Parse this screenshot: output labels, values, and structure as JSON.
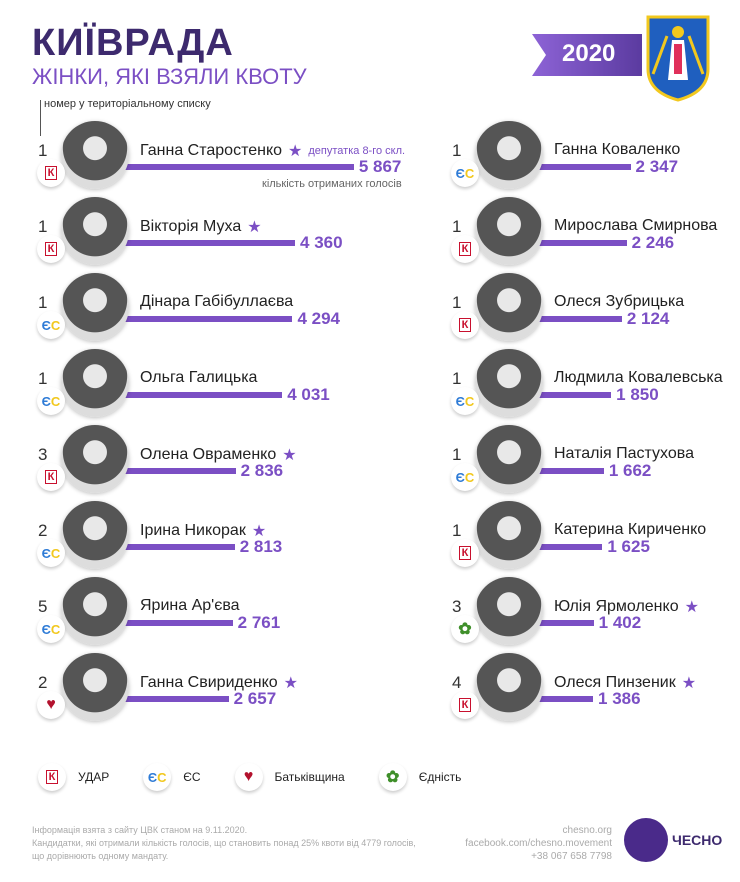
{
  "header": {
    "title": "КИЇВРАДА",
    "subtitle": "ЖІНКИ, ЯКІ ВЗЯЛИ КВОТУ",
    "year": "2020",
    "list_hint": "номер у територіальному списку",
    "deputy_note": "депутатка 8-го скл.",
    "votes_note": "кількість отриманих голосів"
  },
  "colors": {
    "accent": "#7b4fc4",
    "title": "#3d2a6e",
    "udar": "#c8102e",
    "es_blue": "#2e7bd6",
    "es_yellow": "#f2c81e",
    "batk": "#b3122e",
    "yednist": "#3f8f2a"
  },
  "chart_data": {
    "type": "bar",
    "unit": "votes",
    "left": [
      {
        "n": "1",
        "name": "Ганна Старостенко",
        "party": "УДАР",
        "star": true,
        "value": 5867,
        "label": "5 867"
      },
      {
        "n": "1",
        "name": "Вікторія Муха",
        "party": "УДАР",
        "star": true,
        "value": 4360,
        "label": "4 360"
      },
      {
        "n": "1",
        "name": "Дінара Габібуллаєва",
        "party": "ЄС",
        "star": false,
        "value": 4294,
        "label": "4 294"
      },
      {
        "n": "1",
        "name": "Ольга Галицька",
        "party": "ЄС",
        "star": false,
        "value": 4031,
        "label": "4 031"
      },
      {
        "n": "3",
        "name": "Олена Овраменко",
        "party": "УДАР",
        "star": true,
        "value": 2836,
        "label": "2 836"
      },
      {
        "n": "2",
        "name": "Ірина Никорак",
        "party": "ЄС",
        "star": true,
        "value": 2813,
        "label": "2 813"
      },
      {
        "n": "5",
        "name": "Ярина Ар'єва",
        "party": "ЄС",
        "star": false,
        "value": 2761,
        "label": "2 761"
      },
      {
        "n": "2",
        "name": "Ганна Свириденко",
        "party": "Батьківщина",
        "star": true,
        "value": 2657,
        "label": "2 657"
      }
    ],
    "right": [
      {
        "n": "1",
        "name": "Ганна Коваленко",
        "party": "ЄС",
        "star": false,
        "value": 2347,
        "label": "2 347"
      },
      {
        "n": "1",
        "name": "Мирослава Смирнова",
        "party": "УДАР",
        "star": false,
        "value": 2246,
        "label": "2 246"
      },
      {
        "n": "1",
        "name": "Олеся Зубрицька",
        "party": "УДАР",
        "star": false,
        "value": 2124,
        "label": "2 124"
      },
      {
        "n": "1",
        "name": "Людмила Ковалевська",
        "party": "ЄС",
        "star": false,
        "value": 1850,
        "label": "1 850"
      },
      {
        "n": "1",
        "name": "Наталія Пастухова",
        "party": "ЄС",
        "star": false,
        "value": 1662,
        "label": "1 662"
      },
      {
        "n": "1",
        "name": "Катерина Кириченко",
        "party": "УДАР",
        "star": false,
        "value": 1625,
        "label": "1 625"
      },
      {
        "n": "3",
        "name": "Юлія Ярмоленко",
        "party": "Єдність",
        "star": true,
        "value": 1402,
        "label": "1 402"
      },
      {
        "n": "4",
        "name": "Олеся Пинзеник",
        "party": "УДАР",
        "star": true,
        "value": 1386,
        "label": "1 386"
      }
    ]
  },
  "legend": [
    {
      "party": "УДАР",
      "label": "УДАР"
    },
    {
      "party": "ЄС",
      "label": "ЄС"
    },
    {
      "party": "Батьківщина",
      "label": "Батьківщина"
    },
    {
      "party": "Єдність",
      "label": "Єдність"
    }
  ],
  "footer": {
    "source": "Інформація взята з сайту ЦВК станом на 9.11.2020.",
    "note1": "Кандидатки, які отримали кількість голосів, що становить понад 25% квоти від 4779 голосів,",
    "note2": "що дорівнюють одному мандату.",
    "site": "chesno.org",
    "facebook": "facebook.com/chesno.movement",
    "phone": "+38 067 658 7798",
    "brand": "ЧЕСНО"
  }
}
